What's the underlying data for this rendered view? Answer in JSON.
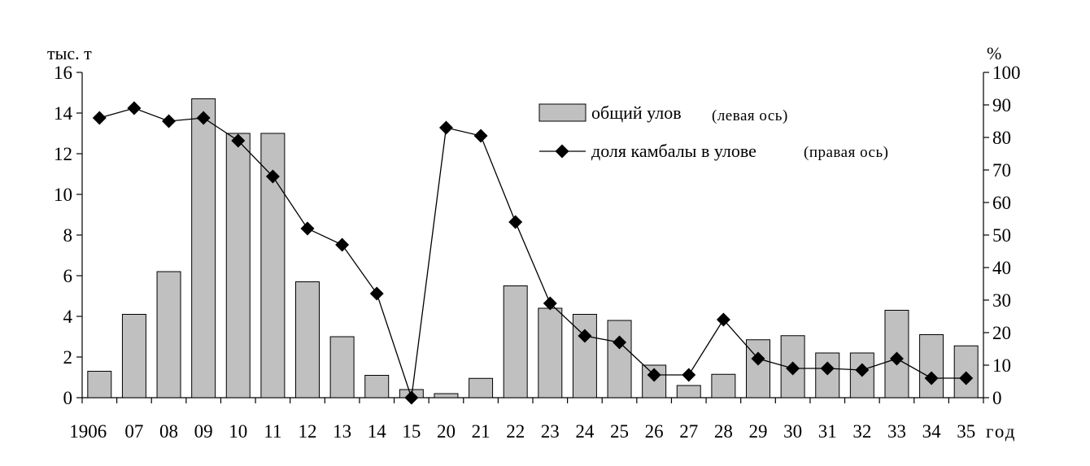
{
  "chart_data": {
    "type": "bar+line",
    "left_axis": {
      "unit_label": "тыс. т",
      "ylim": [
        0,
        16
      ],
      "ticks": [
        0,
        2,
        4,
        6,
        8,
        10,
        12,
        14,
        16
      ]
    },
    "right_axis": {
      "unit_label": "%",
      "ylim": [
        0,
        100
      ],
      "ticks": [
        0,
        10,
        20,
        30,
        40,
        50,
        60,
        70,
        80,
        90,
        100
      ]
    },
    "x_axis_suffix": "год",
    "categories": [
      "1906",
      "07",
      "08",
      "09",
      "10",
      "11",
      "12",
      "13",
      "14",
      "15",
      "20",
      "21",
      "22",
      "23",
      "24",
      "25",
      "26",
      "27",
      "28",
      "29",
      "30",
      "31",
      "32",
      "33",
      "34",
      "35"
    ],
    "series": [
      {
        "name": "общий улов",
        "axis_note": "(левая ось)",
        "kind": "bar",
        "color": "#c0c0c0",
        "values": [
          1.3,
          4.1,
          6.2,
          14.7,
          13.0,
          13.0,
          5.7,
          3.0,
          1.1,
          0.4,
          0.2,
          0.95,
          5.5,
          4.4,
          4.1,
          3.8,
          1.6,
          0.6,
          1.15,
          2.85,
          3.05,
          2.2,
          2.2,
          4.3,
          3.1,
          2.55
        ]
      },
      {
        "name": "доля камбалы в улове",
        "axis_note": "(правая ось)",
        "kind": "line",
        "color": "#000000",
        "values": [
          86,
          89,
          85,
          86,
          79,
          68,
          52,
          47,
          32,
          0,
          83,
          80.5,
          54,
          29,
          19,
          17,
          7,
          7,
          24,
          12,
          9,
          9,
          8.5,
          12,
          6,
          6
        ]
      }
    ],
    "legend_position": "top-right",
    "grid": false
  }
}
